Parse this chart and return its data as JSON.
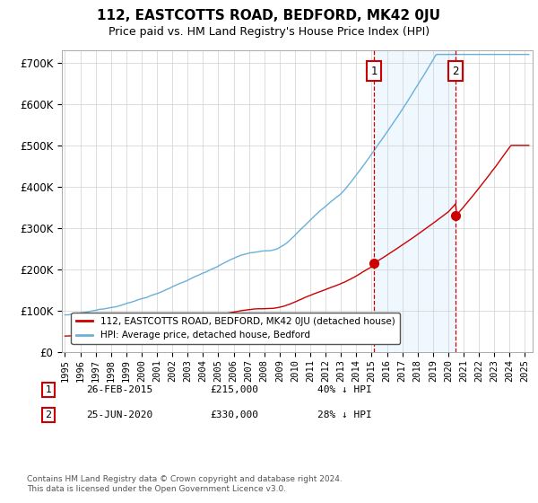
{
  "title": "112, EASTCOTTS ROAD, BEDFORD, MK42 0JU",
  "subtitle": "Price paid vs. HM Land Registry's House Price Index (HPI)",
  "ylabel_ticks": [
    "£0",
    "£100K",
    "£200K",
    "£300K",
    "£400K",
    "£500K",
    "£600K",
    "£700K"
  ],
  "ytick_values": [
    0,
    100000,
    200000,
    300000,
    400000,
    500000,
    600000,
    700000
  ],
  "ylim": [
    0,
    730000
  ],
  "xlim_start": 1994.8,
  "xlim_end": 2025.5,
  "hpi_color": "#6ab0d8",
  "price_color": "#cc0000",
  "vline_color": "#cc0000",
  "bg_shaded_color": "#ddeeff",
  "legend_label_red": "112, EASTCOTTS ROAD, BEDFORD, MK42 0JU (detached house)",
  "legend_label_blue": "HPI: Average price, detached house, Bedford",
  "annotation1_year": 2015.15,
  "annotation1_price_val": 215000,
  "annotation2_year": 2020.48,
  "annotation2_price_val": 330000,
  "annotation1_num": "1",
  "annotation1_date": "26-FEB-2015",
  "annotation1_price": "£215,000",
  "annotation1_hpi": "40% ↓ HPI",
  "annotation2_num": "2",
  "annotation2_date": "25-JUN-2020",
  "annotation2_price": "£330,000",
  "annotation2_hpi": "28% ↓ HPI",
  "footnote": "Contains HM Land Registry data © Crown copyright and database right 2024.\nThis data is licensed under the Open Government Licence v3.0."
}
